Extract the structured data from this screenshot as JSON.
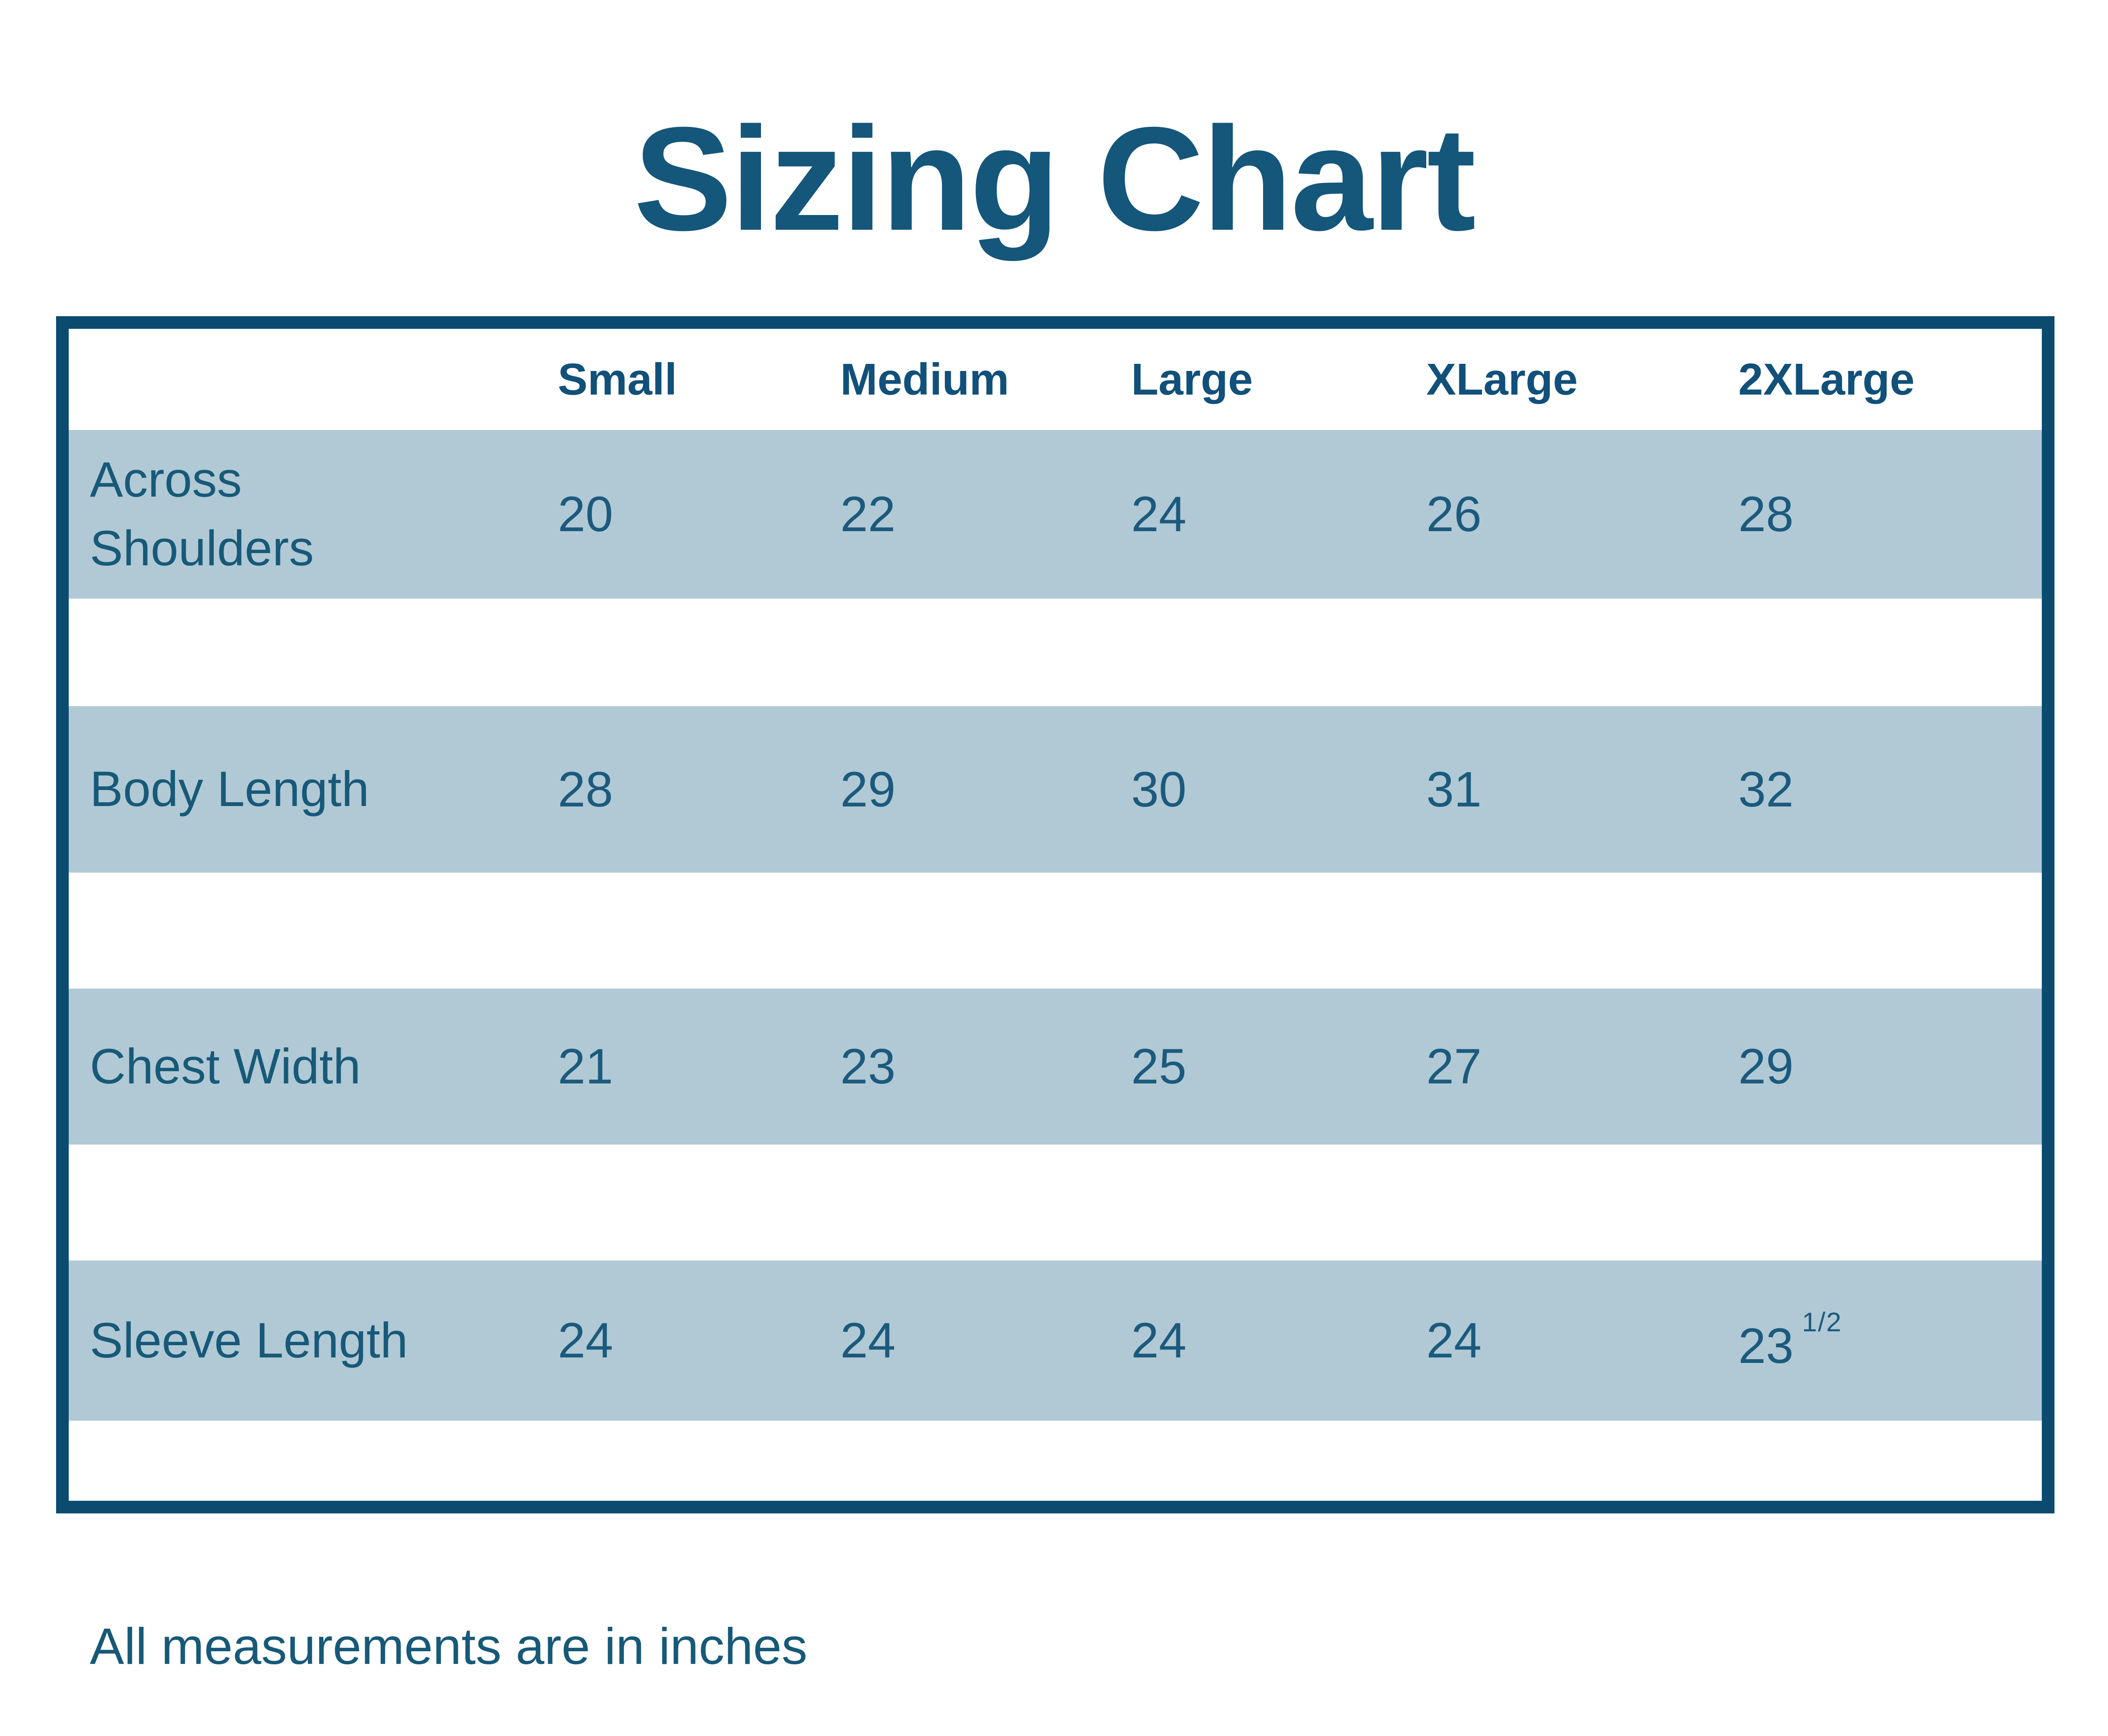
{
  "title": "Sizing Chart",
  "table": {
    "columns": [
      "Small",
      "Medium",
      "Large",
      "XLarge",
      "2XLarge"
    ],
    "rows": [
      {
        "label": "Across Shoulders",
        "values": [
          "20",
          "22",
          "24",
          "26",
          "28"
        ]
      },
      {
        "label": "Body Length",
        "values": [
          "28",
          "29",
          "30",
          "31",
          "32"
        ]
      },
      {
        "label": "Chest Width",
        "values": [
          "21",
          "23",
          "25",
          "27",
          "29"
        ]
      },
      {
        "label": "Sleeve Length",
        "values": [
          "24",
          "24",
          "24",
          "24",
          {
            "main": "23",
            "sup": "1/2"
          }
        ]
      }
    ]
  },
  "footnote": "All measurements are in inches",
  "colors": {
    "ink": "#15567B",
    "border": "#0B4B6F",
    "row_band": "#B0C9D5",
    "background": "#FFFFFF"
  }
}
